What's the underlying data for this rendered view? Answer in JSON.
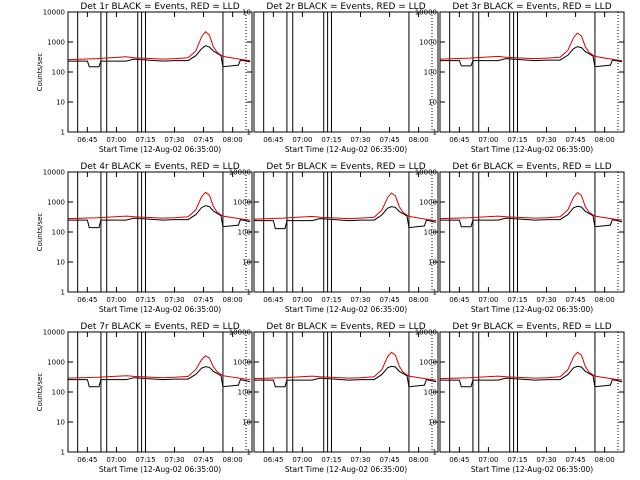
{
  "colors": {
    "events": "#000000",
    "lld": "#e00000",
    "axes": "#000000",
    "background": "#ffffff"
  },
  "chart_data": [
    {
      "type": "line",
      "title": "Det 1r BLACK = Events, RED = LLD",
      "xlabel": "Start Time (12-Aug-02 06:35:00)",
      "ylabel": "Counts/sec",
      "yscale": "log",
      "ylim": [
        1,
        10000
      ],
      "xlim": [
        "06:35",
        "08:10"
      ],
      "xticks": [
        "06:45",
        "07:00",
        "07:15",
        "07:30",
        "07:45",
        "08:00"
      ],
      "yticks": [
        "1",
        "10",
        "100",
        "1000",
        "10000"
      ],
      "grid": false,
      "series": [
        {
          "name": "Events",
          "color": "#000000",
          "x": [
            "06:35",
            "06:45",
            "06:46",
            "06:51",
            "06:52",
            "07:05",
            "07:09",
            "07:24",
            "07:30",
            "07:37",
            "07:41",
            "07:44",
            "07:46",
            "07:48",
            "07:50",
            "07:54",
            "07:55",
            "08:03",
            "08:04",
            "08:09"
          ],
          "y": [
            230,
            230,
            150,
            150,
            230,
            230,
            270,
            230,
            240,
            240,
            350,
            600,
            750,
            680,
            500,
            350,
            150,
            170,
            250,
            220
          ]
        },
        {
          "name": "LLD",
          "color": "#e00000",
          "x": [
            "06:35",
            "06:50",
            "07:05",
            "07:09",
            "07:24",
            "07:30",
            "07:37",
            "07:41",
            "07:44",
            "07:46",
            "07:48",
            "07:50",
            "07:52",
            "07:55",
            "08:05",
            "08:09"
          ],
          "y": [
            260,
            280,
            320,
            300,
            270,
            280,
            300,
            500,
            1500,
            2200,
            1700,
            700,
            450,
            330,
            260,
            240
          ]
        }
      ],
      "gap_lines": [
        "06:40",
        "06:52",
        "06:55",
        "07:11",
        "07:13",
        "07:15",
        "07:55"
      ]
    },
    {
      "type": "line",
      "title": "Det 2r BLACK = Events, RED = LLD",
      "xlabel": "Start Time (12-Aug-02 06:35:00)",
      "ylabel": "",
      "yscale": "log",
      "ylim": [
        1,
        10
      ],
      "xlim": [
        "06:35",
        "08:10"
      ],
      "xticks": [
        "06:45",
        "07:00",
        "07:15",
        "07:30",
        "07:45",
        "08:00"
      ],
      "yticks": [
        "1",
        "10"
      ],
      "grid": false,
      "series": [],
      "gap_lines": [
        "06:40",
        "06:52",
        "06:55",
        "07:11",
        "07:13",
        "07:15",
        "07:55"
      ]
    },
    {
      "type": "line",
      "title": "Det 3r BLACK = Events, RED = LLD",
      "xlabel": "Start Time (12-Aug-02 06:35:00)",
      "ylabel": "",
      "yscale": "log",
      "ylim": [
        1,
        10000
      ],
      "xlim": [
        "06:35",
        "08:10"
      ],
      "xticks": [
        "06:45",
        "07:00",
        "07:15",
        "07:30",
        "07:45",
        "08:00"
      ],
      "yticks": [
        "1",
        "10",
        "100",
        "1000",
        "10000"
      ],
      "grid": false,
      "series": [
        {
          "name": "Events",
          "color": "#000000",
          "x": [
            "06:35",
            "06:45",
            "06:46",
            "06:51",
            "06:52",
            "07:05",
            "07:09",
            "07:24",
            "07:30",
            "07:37",
            "07:41",
            "07:44",
            "07:46",
            "07:48",
            "07:50",
            "07:54",
            "07:55",
            "08:03",
            "08:04",
            "08:09"
          ],
          "y": [
            240,
            240,
            160,
            160,
            240,
            240,
            280,
            240,
            250,
            250,
            360,
            600,
            700,
            650,
            480,
            340,
            150,
            170,
            250,
            220
          ]
        },
        {
          "name": "LLD",
          "color": "#e00000",
          "x": [
            "06:35",
            "06:50",
            "07:05",
            "07:09",
            "07:24",
            "07:30",
            "07:37",
            "07:41",
            "07:44",
            "07:46",
            "07:48",
            "07:50",
            "07:52",
            "07:55",
            "08:05",
            "08:09"
          ],
          "y": [
            270,
            290,
            330,
            310,
            280,
            290,
            310,
            520,
            1400,
            2000,
            1600,
            700,
            450,
            330,
            260,
            240
          ]
        }
      ],
      "gap_lines": [
        "06:40",
        "06:52",
        "06:55",
        "07:11",
        "07:13",
        "07:15",
        "07:55"
      ]
    },
    {
      "type": "line",
      "title": "Det 4r BLACK = Events, RED = LLD",
      "xlabel": "Start Time (12-Aug-02 06:35:00)",
      "ylabel": "Counts/sec",
      "yscale": "log",
      "ylim": [
        1,
        10000
      ],
      "xlim": [
        "06:35",
        "08:10"
      ],
      "xticks": [
        "06:45",
        "07:00",
        "07:15",
        "07:30",
        "07:45",
        "08:00"
      ],
      "yticks": [
        "1",
        "10",
        "100",
        "1000",
        "10000"
      ],
      "grid": false,
      "series": [
        {
          "name": "Events",
          "color": "#000000",
          "x": [
            "06:35",
            "06:45",
            "06:46",
            "06:51",
            "06:52",
            "07:05",
            "07:09",
            "07:24",
            "07:30",
            "07:37",
            "07:41",
            "07:44",
            "07:46",
            "07:48",
            "07:50",
            "07:54",
            "07:55",
            "08:03",
            "08:04",
            "08:09"
          ],
          "y": [
            250,
            250,
            140,
            140,
            250,
            250,
            290,
            250,
            260,
            260,
            380,
            650,
            750,
            700,
            500,
            350,
            150,
            170,
            260,
            220
          ]
        },
        {
          "name": "LLD",
          "color": "#e00000",
          "x": [
            "06:35",
            "06:50",
            "07:05",
            "07:09",
            "07:24",
            "07:30",
            "07:37",
            "07:41",
            "07:44",
            "07:46",
            "07:48",
            "07:50",
            "07:52",
            "07:55",
            "08:05",
            "08:09"
          ],
          "y": [
            280,
            300,
            340,
            320,
            290,
            300,
            320,
            550,
            1500,
            2100,
            1700,
            720,
            460,
            340,
            270,
            250
          ]
        }
      ],
      "gap_lines": [
        "06:40",
        "06:52",
        "06:55",
        "07:11",
        "07:13",
        "07:15",
        "07:55"
      ]
    },
    {
      "type": "line",
      "title": "Det 5r BLACK = Events, RED = LLD",
      "xlabel": "Start Time (12-Aug-02 06:35:00)",
      "ylabel": "",
      "yscale": "log",
      "ylim": [
        1,
        10000
      ],
      "xlim": [
        "06:35",
        "08:10"
      ],
      "xticks": [
        "06:45",
        "07:00",
        "07:15",
        "07:30",
        "07:45",
        "08:00"
      ],
      "yticks": [
        "1",
        "10",
        "100",
        "1000",
        "10000"
      ],
      "grid": false,
      "series": [
        {
          "name": "Events",
          "color": "#000000",
          "x": [
            "06:35",
            "06:45",
            "06:46",
            "06:51",
            "06:52",
            "07:05",
            "07:09",
            "07:24",
            "07:30",
            "07:37",
            "07:41",
            "07:44",
            "07:46",
            "07:48",
            "07:50",
            "07:54",
            "07:55",
            "08:03",
            "08:04",
            "08:09"
          ],
          "y": [
            240,
            240,
            130,
            130,
            240,
            240,
            280,
            240,
            250,
            250,
            370,
            620,
            700,
            660,
            480,
            340,
            140,
            160,
            250,
            210
          ]
        },
        {
          "name": "LLD",
          "color": "#e00000",
          "x": [
            "06:35",
            "06:50",
            "07:05",
            "07:09",
            "07:24",
            "07:30",
            "07:37",
            "07:41",
            "07:44",
            "07:46",
            "07:48",
            "07:50",
            "07:52",
            "07:55",
            "08:05",
            "08:09"
          ],
          "y": [
            270,
            290,
            330,
            310,
            280,
            290,
            310,
            530,
            1400,
            2000,
            1600,
            700,
            450,
            330,
            260,
            240
          ]
        }
      ],
      "gap_lines": [
        "06:40",
        "06:52",
        "06:55",
        "07:11",
        "07:13",
        "07:15",
        "07:55"
      ]
    },
    {
      "type": "line",
      "title": "Det 6r BLACK = Events, RED = LLD",
      "xlabel": "Start Time (12-Aug-02 06:35:00)",
      "ylabel": "",
      "yscale": "log",
      "ylim": [
        1,
        10000
      ],
      "xlim": [
        "06:35",
        "08:10"
      ],
      "xticks": [
        "06:45",
        "07:00",
        "07:15",
        "07:30",
        "07:45",
        "08:00"
      ],
      "yticks": [
        "1",
        "10",
        "100",
        "1000",
        "10000"
      ],
      "grid": false,
      "series": [
        {
          "name": "Events",
          "color": "#000000",
          "x": [
            "06:35",
            "06:45",
            "06:46",
            "06:51",
            "06:52",
            "07:05",
            "07:09",
            "07:24",
            "07:30",
            "07:37",
            "07:41",
            "07:44",
            "07:46",
            "07:48",
            "07:50",
            "07:54",
            "07:55",
            "08:03",
            "08:04",
            "08:09"
          ],
          "y": [
            250,
            250,
            150,
            150,
            250,
            250,
            290,
            250,
            260,
            260,
            380,
            640,
            720,
            680,
            490,
            350,
            150,
            170,
            260,
            220
          ]
        },
        {
          "name": "LLD",
          "color": "#e00000",
          "x": [
            "06:35",
            "06:50",
            "07:05",
            "07:09",
            "07:24",
            "07:30",
            "07:37",
            "07:41",
            "07:44",
            "07:46",
            "07:48",
            "07:50",
            "07:52",
            "07:55",
            "08:05",
            "08:09"
          ],
          "y": [
            280,
            300,
            340,
            320,
            290,
            300,
            320,
            540,
            1450,
            2050,
            1650,
            710,
            460,
            340,
            270,
            250
          ]
        }
      ],
      "gap_lines": [
        "06:40",
        "06:52",
        "06:55",
        "07:11",
        "07:13",
        "07:15",
        "07:55"
      ]
    },
    {
      "type": "line",
      "title": "Det 7r BLACK = Events, RED = LLD",
      "xlabel": "Start Time (12-Aug-02 06:35:00)",
      "ylabel": "Counts/sec",
      "yscale": "log",
      "ylim": [
        1,
        10000
      ],
      "xlim": [
        "06:35",
        "08:10"
      ],
      "xticks": [
        "06:45",
        "07:00",
        "07:15",
        "07:30",
        "07:45",
        "08:00"
      ],
      "yticks": [
        "1",
        "10",
        "100",
        "1000",
        "10000"
      ],
      "grid": false,
      "series": [
        {
          "name": "Events",
          "color": "#000000",
          "x": [
            "06:35",
            "06:45",
            "06:46",
            "06:51",
            "06:52",
            "07:05",
            "07:09",
            "07:24",
            "07:30",
            "07:37",
            "07:41",
            "07:44",
            "07:46",
            "07:48",
            "07:50",
            "07:54",
            "07:55",
            "08:03",
            "08:04",
            "08:09"
          ],
          "y": [
            260,
            260,
            150,
            150,
            260,
            260,
            300,
            260,
            270,
            270,
            390,
            620,
            700,
            660,
            490,
            350,
            150,
            170,
            260,
            220
          ]
        },
        {
          "name": "LLD",
          "color": "#e00000",
          "x": [
            "06:35",
            "06:50",
            "07:05",
            "07:09",
            "07:24",
            "07:30",
            "07:37",
            "07:41",
            "07:44",
            "07:46",
            "07:48",
            "07:50",
            "07:52",
            "07:55",
            "08:05",
            "08:09"
          ],
          "y": [
            290,
            310,
            350,
            330,
            300,
            310,
            330,
            560,
            1200,
            1600,
            1350,
            700,
            470,
            350,
            280,
            260
          ]
        }
      ],
      "gap_lines": [
        "06:40",
        "06:52",
        "06:55",
        "07:11",
        "07:13",
        "07:15",
        "07:55"
      ]
    },
    {
      "type": "line",
      "title": "Det 8r BLACK = Events, RED = LLD",
      "xlabel": "Start Time (12-Aug-02 06:35:00)",
      "ylabel": "",
      "yscale": "log",
      "ylim": [
        1,
        10000
      ],
      "xlim": [
        "06:35",
        "08:10"
      ],
      "xticks": [
        "06:45",
        "07:00",
        "07:15",
        "07:30",
        "07:45",
        "08:00"
      ],
      "yticks": [
        "1",
        "10",
        "100",
        "1000",
        "10000"
      ],
      "grid": false,
      "series": [
        {
          "name": "Events",
          "color": "#000000",
          "x": [
            "06:35",
            "06:45",
            "06:46",
            "06:51",
            "06:52",
            "07:05",
            "07:09",
            "07:24",
            "07:30",
            "07:37",
            "07:41",
            "07:44",
            "07:46",
            "07:48",
            "07:50",
            "07:54",
            "07:55",
            "08:03",
            "08:04",
            "08:09"
          ],
          "y": [
            250,
            250,
            150,
            150,
            250,
            250,
            290,
            250,
            260,
            260,
            380,
            640,
            720,
            680,
            490,
            350,
            150,
            170,
            260,
            220
          ]
        },
        {
          "name": "LLD",
          "color": "#e00000",
          "x": [
            "06:35",
            "06:50",
            "07:05",
            "07:09",
            "07:24",
            "07:30",
            "07:37",
            "07:41",
            "07:44",
            "07:46",
            "07:48",
            "07:50",
            "07:52",
            "07:55",
            "08:05",
            "08:09"
          ],
          "y": [
            280,
            300,
            340,
            320,
            290,
            300,
            320,
            550,
            1500,
            2100,
            1700,
            720,
            460,
            340,
            270,
            250
          ]
        }
      ],
      "gap_lines": [
        "06:40",
        "06:52",
        "06:55",
        "07:11",
        "07:13",
        "07:15",
        "07:55"
      ]
    },
    {
      "type": "line",
      "title": "Det 9r BLACK = Events, RED = LLD",
      "xlabel": "Start Time (12-Aug-02 06:35:00)",
      "ylabel": "",
      "yscale": "log",
      "ylim": [
        1,
        10000
      ],
      "xlim": [
        "06:35",
        "08:10"
      ],
      "xticks": [
        "06:45",
        "07:00",
        "07:15",
        "07:30",
        "07:45",
        "08:00"
      ],
      "yticks": [
        "1",
        "10",
        "100",
        "1000",
        "10000"
      ],
      "grid": false,
      "series": [
        {
          "name": "Events",
          "color": "#000000",
          "x": [
            "06:35",
            "06:45",
            "06:46",
            "06:51",
            "06:52",
            "07:05",
            "07:09",
            "07:24",
            "07:30",
            "07:37",
            "07:41",
            "07:44",
            "07:46",
            "07:48",
            "07:50",
            "07:54",
            "07:55",
            "08:03",
            "08:04",
            "08:09"
          ],
          "y": [
            250,
            250,
            150,
            150,
            250,
            250,
            290,
            250,
            260,
            260,
            380,
            640,
            720,
            680,
            490,
            350,
            150,
            170,
            260,
            220
          ]
        },
        {
          "name": "LLD",
          "color": "#e00000",
          "x": [
            "06:35",
            "06:50",
            "07:05",
            "07:09",
            "07:24",
            "07:30",
            "07:37",
            "07:41",
            "07:44",
            "07:46",
            "07:48",
            "07:50",
            "07:52",
            "07:55",
            "08:05",
            "08:09"
          ],
          "y": [
            280,
            300,
            340,
            320,
            290,
            300,
            320,
            550,
            1500,
            2100,
            1700,
            720,
            460,
            340,
            270,
            250
          ]
        }
      ],
      "gap_lines": [
        "06:40",
        "06:52",
        "06:55",
        "07:11",
        "07:13",
        "07:15",
        "07:55"
      ]
    }
  ]
}
